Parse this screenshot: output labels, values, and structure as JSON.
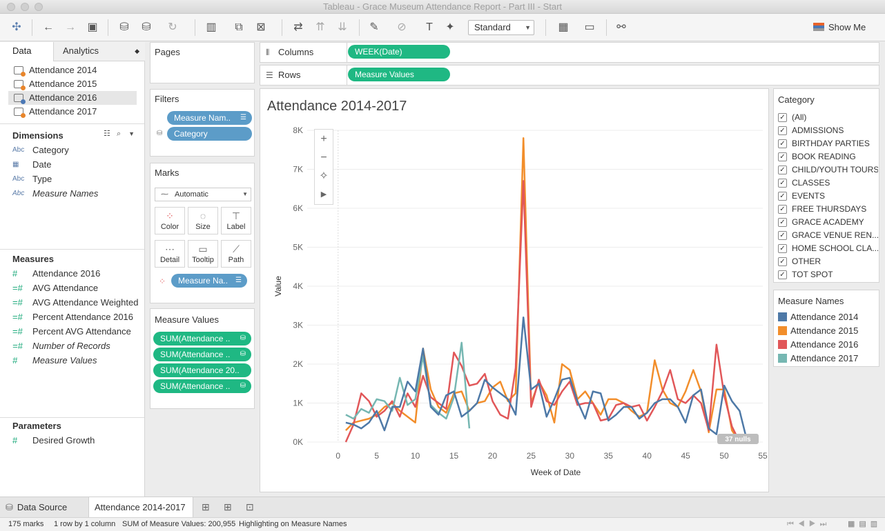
{
  "window": {
    "title": "Tableau - Grace Museum Attendance Report - Part III - Start"
  },
  "toolbar": {
    "mark_style": "Standard",
    "show_me": "Show Me"
  },
  "left": {
    "tabs": [
      "Data",
      "Analytics"
    ],
    "datasources": [
      "Attendance 2014",
      "Attendance 2015",
      "Attendance 2016",
      "Attendance 2017"
    ],
    "dimensions_header": "Dimensions",
    "dimensions": [
      {
        "icon": "Abc",
        "label": "Category"
      },
      {
        "icon": "calendar-icon",
        "label": "Date"
      },
      {
        "icon": "Abc",
        "label": "Type"
      },
      {
        "icon": "Abc",
        "label": "Measure Names"
      }
    ],
    "measures_header": "Measures",
    "measures": [
      "Attendance 2016",
      "AVG Attendance",
      "AVG Attendance Weighted",
      "Percent Attendance 2016",
      "Percent AVG Attendance",
      "Number of Records",
      "Measure Values"
    ],
    "parameters_header": "Parameters",
    "parameters": [
      "Desired Growth"
    ]
  },
  "cards": {
    "pages": "Pages",
    "filters": "Filters",
    "filter_pills": [
      "Measure Nam..",
      "Category"
    ],
    "marks": "Marks",
    "mark_type": "Automatic",
    "mark_buttons": [
      "Color",
      "Size",
      "Label",
      "Detail",
      "Tooltip",
      "Path"
    ],
    "marks_pill": "Measure Na..",
    "measure_values": "Measure Values",
    "mv_pills": [
      "SUM(Attendance ..",
      "SUM(Attendance ..",
      "SUM(Attendance 20..",
      "SUM(Attendance .."
    ]
  },
  "shelves": {
    "columns_label": "Columns",
    "columns_pill": "WEEK(Date)",
    "rows_label": "Rows",
    "rows_pill": "Measure Values"
  },
  "viz": {
    "title": "Attendance 2014-2017",
    "nulls": "37 nulls"
  },
  "chart_data": {
    "type": "line",
    "title": "Attendance 2014-2017",
    "xlabel": "Week of Date",
    "ylabel": "Value",
    "xlim": [
      -4,
      55
    ],
    "ylim": [
      0,
      8000
    ],
    "xticks": [
      0,
      5,
      10,
      15,
      20,
      25,
      30,
      35,
      40,
      45,
      50,
      55
    ],
    "yticks": [
      0,
      1000,
      2000,
      3000,
      4000,
      5000,
      6000,
      7000,
      8000
    ],
    "ytick_labels": [
      "0K",
      "1K",
      "2K",
      "3K",
      "4K",
      "5K",
      "6K",
      "7K",
      "8K"
    ],
    "legend": "right",
    "series": [
      {
        "name": "Attendance 2014",
        "color": "#4e79a7",
        "x": [
          1,
          2,
          3,
          4,
          5,
          6,
          7,
          8,
          9,
          10,
          11,
          12,
          13,
          14,
          15,
          16,
          17,
          18,
          19,
          20,
          21,
          22,
          23,
          24,
          25,
          26,
          27,
          28,
          29,
          30,
          31,
          32,
          33,
          34,
          35,
          36,
          37,
          38,
          39,
          40,
          41,
          42,
          43,
          44,
          45,
          46,
          47,
          48,
          49,
          50,
          51,
          52,
          53
        ],
        "y": [
          500,
          450,
          350,
          500,
          800,
          300,
          900,
          900,
          1550,
          1300,
          2400,
          900,
          700,
          1200,
          1300,
          650,
          800,
          1000,
          1600,
          1400,
          1250,
          1100,
          700,
          3200,
          1350,
          1500,
          650,
          1100,
          1600,
          1650,
          1050,
          600,
          1300,
          1250,
          550,
          700,
          900,
          900,
          600,
          750,
          1000,
          1100,
          1100,
          900,
          500,
          1200,
          1350,
          350,
          200,
          1450,
          1050,
          800,
          0
        ]
      },
      {
        "name": "Attendance 2015",
        "color": "#f28e2b",
        "x": [
          1,
          2,
          3,
          4,
          5,
          6,
          7,
          8,
          9,
          10,
          11,
          12,
          13,
          14,
          15,
          16,
          17,
          18,
          19,
          20,
          21,
          22,
          23,
          24,
          25,
          26,
          27,
          28,
          29,
          30,
          31,
          32,
          33,
          34,
          35,
          36,
          37,
          38,
          39,
          40,
          41,
          42,
          43,
          44,
          45,
          46,
          47,
          48,
          49,
          50,
          51,
          52
        ],
        "y": [
          300,
          500,
          550,
          600,
          700,
          900,
          1000,
          800,
          650,
          500,
          2400,
          1350,
          900,
          750,
          1250,
          1300,
          800,
          1000,
          1050,
          1400,
          1550,
          1050,
          1250,
          7800,
          1000,
          1550,
          1200,
          500,
          2000,
          1850,
          1100,
          1300,
          1000,
          700,
          1100,
          1100,
          1000,
          800,
          650,
          750,
          2100,
          1350,
          1000,
          900,
          1300,
          1850,
          1300,
          250,
          1350,
          1350,
          300,
          0
        ]
      },
      {
        "name": "Attendance 2016",
        "color": "#e15759",
        "x": [
          1,
          2,
          3,
          4,
          5,
          6,
          7,
          8,
          9,
          10,
          11,
          12,
          13,
          14,
          15,
          16,
          17,
          18,
          19,
          20,
          21,
          22,
          23,
          24,
          25,
          26,
          27,
          28,
          29,
          30,
          31,
          32,
          33,
          34,
          35,
          36,
          37,
          38,
          39,
          40,
          41,
          42,
          43,
          44,
          45,
          46,
          47,
          48,
          49,
          50,
          51,
          52
        ],
        "y": [
          0,
          450,
          1250,
          1050,
          650,
          800,
          1050,
          650,
          1250,
          900,
          1700,
          1150,
          1000,
          850,
          2300,
          1950,
          1450,
          1500,
          1750,
          1050,
          700,
          600,
          1900,
          6700,
          900,
          1600,
          1050,
          950,
          1300,
          1550,
          950,
          1000,
          1000,
          550,
          600,
          950,
          1000,
          900,
          950,
          550,
          900,
          1300,
          1850,
          1100,
          1000,
          1200,
          1000,
          300,
          2500,
          1200,
          400,
          0
        ]
      },
      {
        "name": "Attendance 2017",
        "color": "#76b7b2",
        "x": [
          1,
          2,
          3,
          4,
          5,
          6,
          7,
          8,
          9,
          10,
          11,
          12,
          13,
          14,
          15,
          16,
          17
        ],
        "y": [
          700,
          600,
          850,
          750,
          1100,
          1050,
          800,
          1650,
          950,
          1100,
          2200,
          950,
          750,
          600,
          1150,
          2550,
          350
        ]
      }
    ],
    "category_filter": [
      "(All)",
      "ADMISSIONS",
      "BIRTHDAY PARTIES",
      "BOOK READING",
      "CHILD/YOUTH TOURS",
      "CLASSES",
      "EVENTS",
      "FREE THURSDAYS",
      "GRACE ACADEMY",
      "GRACE VENUE REN...",
      "HOME SCHOOL CLA...",
      "OTHER",
      "TOT SPOT"
    ]
  },
  "legend": {
    "category_title": "Category",
    "names_title": "Measure Names"
  },
  "bottom": {
    "data_source_tab": "Data Source",
    "sheet_tab": "Attendance 2014-2017"
  },
  "status": {
    "marks": "175 marks",
    "dims": "1 row by 1 column",
    "sum": "SUM of Measure Values: 200,955",
    "highlight": "Highlighting on Measure Names"
  }
}
